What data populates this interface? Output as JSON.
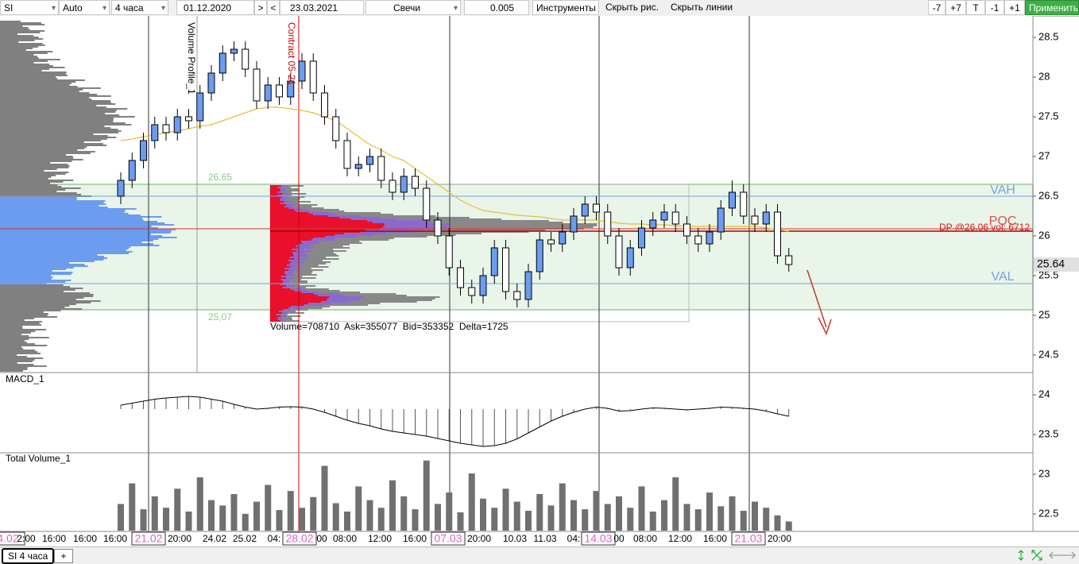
{
  "toolbar": {
    "symbol": "SI",
    "scale": "Auto",
    "timeframe": "4 часа",
    "date_from": "01.12.2020",
    "next": ">",
    "prev": "<",
    "date_to": "23.03.2021",
    "chart_style": "Свечи",
    "tick_size": "0.005",
    "tools": "Инструменты",
    "hide_drawings": "Скрыть рис.",
    "hide_lines": "Скрыть линии",
    "buttons": [
      "-7",
      "+7",
      "T",
      "-1",
      "+1"
    ],
    "apply": "Применить"
  },
  "chart_data": {
    "type": "candlestick",
    "colors": {
      "up": "#6b9cf0",
      "down": "#ffffff",
      "ma": "#e6c030",
      "volume": "#707070",
      "macd": "#000000"
    },
    "candles": [
      [
        26.5,
        26.8,
        26.4,
        26.7
      ],
      [
        26.7,
        27.05,
        26.6,
        26.95
      ],
      [
        26.95,
        27.3,
        26.85,
        27.2
      ],
      [
        27.2,
        27.5,
        27.1,
        27.4
      ],
      [
        27.4,
        27.5,
        27.2,
        27.3
      ],
      [
        27.3,
        27.6,
        27.2,
        27.5
      ],
      [
        27.5,
        27.6,
        27.35,
        27.45
      ],
      [
        27.45,
        27.9,
        27.35,
        27.8
      ],
      [
        27.8,
        28.15,
        27.7,
        28.05
      ],
      [
        28.05,
        28.4,
        27.95,
        28.3
      ],
      [
        28.3,
        28.45,
        28.2,
        28.35
      ],
      [
        28.35,
        28.45,
        28.0,
        28.1
      ],
      [
        28.1,
        28.2,
        27.6,
        27.7
      ],
      [
        27.7,
        28.0,
        27.6,
        27.9
      ],
      [
        27.9,
        28.0,
        27.65,
        27.75
      ],
      [
        27.75,
        28.05,
        27.65,
        27.95
      ],
      [
        27.95,
        28.3,
        27.85,
        28.2
      ],
      [
        28.2,
        28.3,
        27.7,
        27.8
      ],
      [
        27.8,
        27.9,
        27.4,
        27.5
      ],
      [
        27.5,
        27.6,
        27.1,
        27.2
      ],
      [
        27.2,
        27.3,
        26.75,
        26.85
      ],
      [
        26.85,
        27.0,
        26.75,
        26.9
      ],
      [
        26.9,
        27.1,
        26.8,
        27.0
      ],
      [
        27.0,
        27.1,
        26.6,
        26.7
      ],
      [
        26.7,
        26.8,
        26.45,
        26.55
      ],
      [
        26.55,
        26.85,
        26.45,
        26.75
      ],
      [
        26.75,
        26.85,
        26.5,
        26.6
      ],
      [
        26.6,
        26.7,
        26.1,
        26.2
      ],
      [
        26.2,
        26.3,
        25.9,
        26.0
      ],
      [
        26.0,
        26.1,
        25.5,
        25.6
      ],
      [
        25.6,
        25.7,
        25.25,
        25.35
      ],
      [
        25.35,
        25.45,
        25.15,
        25.25
      ],
      [
        25.25,
        25.6,
        25.15,
        25.5
      ],
      [
        25.5,
        25.95,
        25.4,
        25.85
      ],
      [
        25.85,
        25.95,
        25.2,
        25.3
      ],
      [
        25.3,
        25.4,
        25.1,
        25.2
      ],
      [
        25.2,
        25.65,
        25.1,
        25.55
      ],
      [
        25.55,
        26.05,
        25.45,
        25.95
      ],
      [
        25.95,
        26.05,
        25.8,
        25.9
      ],
      [
        25.9,
        26.15,
        25.8,
        26.05
      ],
      [
        26.05,
        26.35,
        25.95,
        26.25
      ],
      [
        26.25,
        26.5,
        26.15,
        26.4
      ],
      [
        26.4,
        26.5,
        26.2,
        26.3
      ],
      [
        26.3,
        26.4,
        25.9,
        26.0
      ],
      [
        26.0,
        26.1,
        25.5,
        25.6
      ],
      [
        25.6,
        25.95,
        25.5,
        25.85
      ],
      [
        25.85,
        26.2,
        25.75,
        26.1
      ],
      [
        26.1,
        26.3,
        26.0,
        26.2
      ],
      [
        26.2,
        26.4,
        26.1,
        26.3
      ],
      [
        26.3,
        26.4,
        26.05,
        26.15
      ],
      [
        26.15,
        26.25,
        25.9,
        26.0
      ],
      [
        26.0,
        26.1,
        25.8,
        25.9
      ],
      [
        25.9,
        26.15,
        25.8,
        26.05
      ],
      [
        26.05,
        26.45,
        25.95,
        26.35
      ],
      [
        26.35,
        26.7,
        26.25,
        26.55
      ],
      [
        26.55,
        26.65,
        26.15,
        26.25
      ],
      [
        26.25,
        26.35,
        26.05,
        26.15
      ],
      [
        26.15,
        26.4,
        26.05,
        26.3
      ],
      [
        26.3,
        26.4,
        25.65,
        25.75
      ],
      [
        25.75,
        25.85,
        25.55,
        25.64
      ]
    ],
    "ma": [
      27.2,
      27.22,
      27.25,
      27.27,
      27.3,
      27.32,
      27.35,
      27.38,
      27.4,
      27.45,
      27.5,
      27.55,
      27.6,
      27.62,
      27.62,
      27.6,
      27.58,
      27.55,
      27.5,
      27.45,
      27.35,
      27.25,
      27.15,
      27.08,
      27.0,
      26.95,
      26.85,
      26.75,
      26.65,
      26.55,
      26.45,
      26.38,
      26.32,
      26.3,
      26.28,
      26.26,
      26.25,
      26.24,
      26.22,
      26.2,
      26.2,
      26.2,
      26.2,
      26.18,
      26.16,
      26.15,
      26.15,
      26.14,
      26.14,
      26.13,
      26.12,
      26.12,
      26.12,
      26.12,
      26.12,
      26.12,
      26.12,
      26.1,
      26.08,
      26.06
    ],
    "ylim": [
      22.28,
      28.72
    ],
    "yticks": [
      22.5,
      23,
      23.5,
      24,
      24.5,
      25,
      25.5,
      26,
      26.5,
      27,
      27.5,
      28,
      28.5
    ],
    "last_price": 25.64,
    "value_area": {
      "high": 26.65,
      "high_label": "26,65",
      "low": 25.07,
      "low_label": "25,07"
    },
    "vah": {
      "label": "VAH",
      "value": 26.5
    },
    "val": {
      "label": "VAL",
      "value": 25.4
    },
    "poc": {
      "label": "POC",
      "value": 26.09
    },
    "dp": {
      "label": "DP @26,06 vol: 6712",
      "value": 26.06
    },
    "profile_title": "Volume Profile_1",
    "contract_label": "Contract 05-21",
    "profile_stats": "Volume=708710  Ask=355077  Bid=353352  Delta=1725",
    "macd": {
      "title": "MACD_1",
      "ylim": [
        -1,
        1
      ],
      "values": [
        0.1,
        0.15,
        0.2,
        0.25,
        0.28,
        0.3,
        0.32,
        0.3,
        0.25,
        0.2,
        0.12,
        0.05,
        0.0,
        0.02,
        0.05,
        0.06,
        0.05,
        0.0,
        -0.08,
        -0.18,
        -0.28,
        -0.36,
        -0.42,
        -0.5,
        -0.56,
        -0.6,
        -0.64,
        -0.68,
        -0.74,
        -0.8,
        -0.86,
        -0.9,
        -0.94,
        -0.92,
        -0.86,
        -0.75,
        -0.6,
        -0.45,
        -0.3,
        -0.18,
        -0.08,
        0.0,
        0.05,
        0.02,
        -0.05,
        -0.04,
        0.0,
        0.03,
        0.02,
        0.0,
        -0.02,
        0.0,
        0.02,
        0.05,
        0.04,
        0.02,
        0.0,
        -0.05,
        -0.12,
        -0.18
      ]
    },
    "volume": {
      "title": "Total Volume_1",
      "ylim": [
        0,
        100
      ],
      "values": [
        35,
        62,
        28,
        45,
        30,
        55,
        25,
        70,
        40,
        33,
        48,
        22,
        38,
        60,
        27,
        52,
        30,
        44,
        85,
        36,
        25,
        58,
        40,
        30,
        66,
        45,
        28,
        92,
        35,
        50,
        24,
        75,
        42,
        30,
        55,
        38,
        26,
        48,
        33,
        62,
        40,
        28,
        52,
        35,
        45,
        30,
        58,
        25,
        40,
        70,
        35,
        28,
        50,
        32,
        45,
        26,
        38,
        30,
        20,
        12
      ]
    },
    "time_labels": [
      "4.02",
      "2:00",
      "16:00",
      "16:00",
      "16:00",
      "21.02",
      "20:00",
      "24.02",
      "25.02",
      "04:",
      "28.02",
      "00",
      "08:00",
      "12:00",
      "16:00",
      "07.03",
      "20:00",
      "10.03",
      "11.03",
      "04:",
      "14.03",
      "00",
      "08:00",
      "12:00",
      "16:00",
      "21.03",
      "20:00"
    ]
  },
  "tabs": {
    "active": "SI 4 часа",
    "add": "+"
  }
}
